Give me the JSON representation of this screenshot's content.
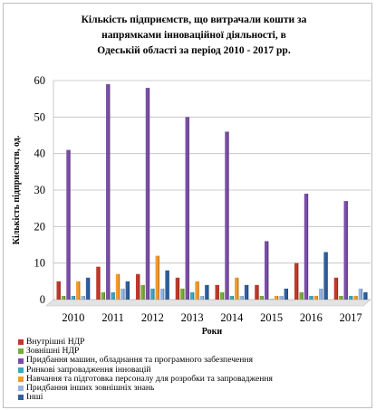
{
  "chart_data": {
    "type": "bar",
    "title": "Кількість підприємств, що витрачали кошти за напрямками інноваційної діяльності, в Одеській області за період 2010 - 2017 рр.",
    "title_lines": [
      "Кількість підприємств, що витрачали кошти за",
      "напрямками інноваційної діяльності, в",
      "Одеській області за період 2010 - 2017 рр."
    ],
    "xlabel": "Роки",
    "ylabel": "Кількість підприємств, од.",
    "ylim": [
      0,
      60
    ],
    "yticks": [
      0,
      10,
      20,
      30,
      40,
      50,
      60
    ],
    "grid": true,
    "legend_position": "bottom",
    "categories": [
      "2010",
      "2011",
      "2012",
      "2013",
      "2014",
      "2015",
      "2016",
      "2017"
    ],
    "series": [
      {
        "name": "Внутрішні НДР",
        "color": "#c0392b",
        "values": [
          5,
          9,
          7,
          6,
          4,
          4,
          10,
          6
        ]
      },
      {
        "name": "Зовнішні НДР",
        "color": "#7cab3c",
        "values": [
          1,
          2,
          4,
          3,
          2,
          1,
          2,
          1
        ]
      },
      {
        "name": "Придбання машин, обладнання та програмного забезпечення",
        "color": "#7a4fa8",
        "values": [
          41,
          59,
          58,
          50,
          46,
          16,
          29,
          27
        ]
      },
      {
        "name": "Ринкові запровадження інновацій",
        "color": "#3fa6bf",
        "values": [
          1,
          2,
          3,
          2,
          1,
          0,
          1,
          1
        ]
      },
      {
        "name": "Навчання та підготовка персоналу для розробки та запровадження",
        "color": "#f39a2c",
        "values": [
          5,
          7,
          12,
          5,
          6,
          1,
          1,
          1
        ]
      },
      {
        "name": "Придбання інших зовнішніх знань",
        "color": "#95b3de",
        "values": [
          1,
          3,
          3,
          1,
          1,
          1,
          3,
          3
        ]
      },
      {
        "name": "Інші",
        "color": "#2f5f9e",
        "values": [
          6,
          5,
          8,
          4,
          4,
          3,
          13,
          2
        ]
      }
    ]
  }
}
